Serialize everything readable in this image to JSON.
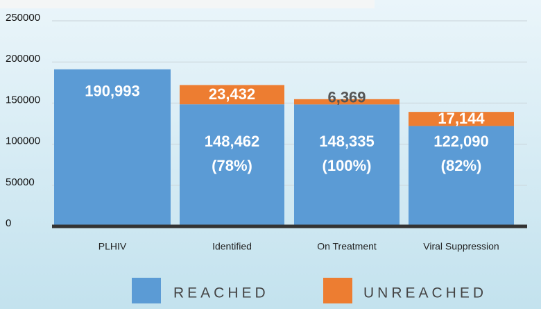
{
  "chart_data": {
    "type": "stacked_bar",
    "categories": [
      "PLHIV",
      "Identified",
      "On Treatment",
      "Viral Suppression"
    ],
    "series": [
      {
        "name": "REACHED",
        "color": "#5b9bd5",
        "values": [
          190993,
          148462,
          148335,
          122090
        ],
        "value_labels": [
          "190,993",
          "148,462",
          "148,335",
          "122,090"
        ],
        "percent_labels": [
          null,
          "(78%)",
          "(100%)",
          "(82%)"
        ]
      },
      {
        "name": "UNREACHED",
        "color": "#ed7d31",
        "values": [
          null,
          23432,
          6369,
          17144
        ],
        "value_labels": [
          null,
          "23,432",
          "6,369",
          "17,144"
        ]
      }
    ],
    "ylim": [
      0,
      250000
    ],
    "yticks": [
      0,
      50000,
      100000,
      150000,
      200000,
      250000
    ],
    "grid": true
  }
}
